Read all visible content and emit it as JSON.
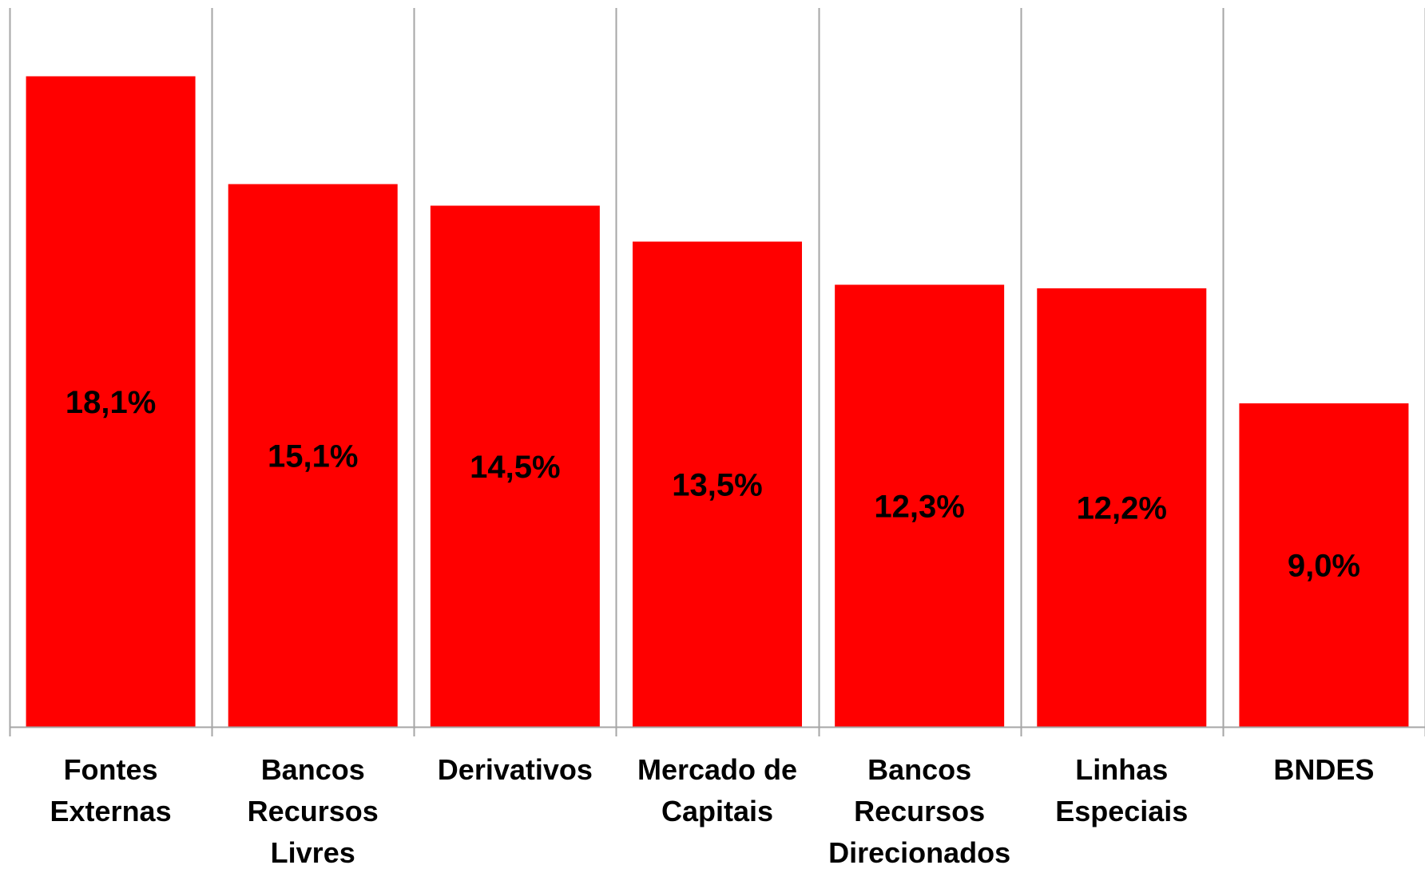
{
  "chart_data": {
    "type": "bar",
    "categories": [
      [
        "Fontes",
        "Externas"
      ],
      [
        "Bancos",
        "Recursos",
        "Livres"
      ],
      [
        "Derivativos"
      ],
      [
        "Mercado de",
        "Capitais"
      ],
      [
        "Bancos",
        "Recursos",
        "Direcionados"
      ],
      [
        "Linhas",
        "Especiais"
      ],
      [
        "BNDES"
      ]
    ],
    "values": [
      18.1,
      15.1,
      14.5,
      13.5,
      12.3,
      12.2,
      9.0
    ],
    "data_labels": [
      "18,1%",
      "15,1%",
      "14,5%",
      "13,5%",
      "12,3%",
      "12,2%",
      "9,0%"
    ],
    "ylim": [
      0,
      20
    ],
    "grid": "vertical category separators",
    "bar_color": "#ff0000",
    "gridline_color": "#a6a6a6",
    "title": "",
    "xlabel": "",
    "ylabel": ""
  }
}
